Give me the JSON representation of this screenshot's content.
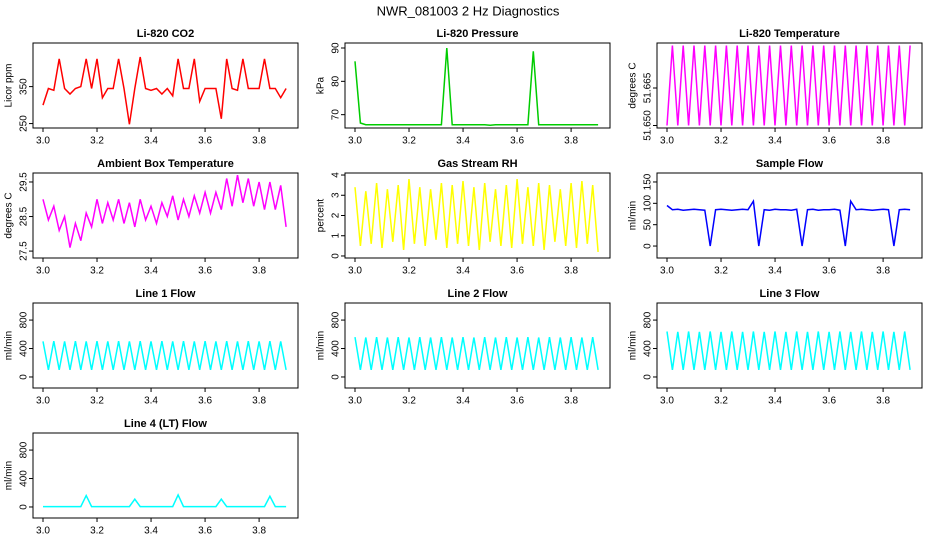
{
  "title": "NWR_081003  2 Hz Diagnostics",
  "chart_data": [
    {
      "type": "line",
      "title": "Li-820 CO2",
      "ylabel": "Licor ppm",
      "color": "#ff0000",
      "x": [
        3,
        3.02,
        3.04,
        3.06,
        3.08,
        3.1,
        3.12,
        3.14,
        3.16,
        3.18,
        3.2,
        3.22,
        3.24,
        3.26,
        3.28,
        3.3,
        3.32,
        3.34,
        3.36,
        3.38,
        3.4,
        3.42,
        3.44,
        3.46,
        3.48,
        3.5,
        3.52,
        3.54,
        3.56,
        3.58,
        3.6,
        3.62,
        3.64,
        3.66,
        3.68,
        3.7,
        3.72,
        3.74,
        3.76,
        3.78,
        3.8,
        3.82,
        3.84,
        3.86,
        3.88,
        3.9
      ],
      "values": [
        300,
        345,
        340,
        425,
        345,
        330,
        345,
        350,
        425,
        345,
        425,
        320,
        345,
        345,
        425,
        345,
        248,
        345,
        430,
        345,
        340,
        345,
        330,
        345,
        325,
        425,
        345,
        345,
        425,
        310,
        345,
        345,
        345,
        263,
        425,
        345,
        340,
        425,
        345,
        345,
        345,
        425,
        345,
        345,
        320,
        345
      ],
      "xlim": [
        2.963,
        3.944
      ],
      "xticks": [
        {
          "value": 3,
          "label": "3.0"
        },
        {
          "value": 3.2,
          "label": "3.2"
        },
        {
          "value": 3.4,
          "label": "3.4"
        },
        {
          "value": 3.6,
          "label": "3.6"
        },
        {
          "value": 3.8,
          "label": "3.8"
        }
      ],
      "ylim": [
        238,
        468
      ],
      "yticks": [
        250,
        350
      ]
    },
    {
      "type": "line",
      "title": "Li-820 Pressure",
      "ylabel": "kPa",
      "color": "#00cc00",
      "x": [
        3,
        3.02,
        3.04,
        3.06,
        3.08,
        3.1,
        3.12,
        3.14,
        3.16,
        3.18,
        3.2,
        3.22,
        3.24,
        3.26,
        3.28,
        3.3,
        3.32,
        3.34,
        3.36,
        3.38,
        3.4,
        3.42,
        3.44,
        3.46,
        3.48,
        3.5,
        3.52,
        3.54,
        3.56,
        3.58,
        3.6,
        3.62,
        3.64,
        3.66,
        3.68,
        3.7,
        3.72,
        3.74,
        3.76,
        3.78,
        3.8,
        3.82,
        3.84,
        3.86,
        3.88,
        3.9
      ],
      "values": [
        86,
        67.5,
        67,
        67,
        67,
        67,
        67,
        67,
        67,
        67,
        67,
        67,
        67,
        67,
        67,
        67,
        67,
        90,
        67,
        67,
        67,
        67,
        67,
        67,
        67,
        66.8,
        67,
        67,
        67,
        67,
        67,
        67,
        67,
        89,
        67,
        67,
        67,
        67,
        67,
        67,
        67,
        67,
        67,
        67,
        67,
        67
      ],
      "xlim": [
        2.963,
        3.944
      ],
      "xticks": [
        {
          "value": 3,
          "label": "3.0"
        },
        {
          "value": 3.2,
          "label": "3.2"
        },
        {
          "value": 3.4,
          "label": "3.4"
        },
        {
          "value": 3.6,
          "label": "3.6"
        },
        {
          "value": 3.8,
          "label": "3.8"
        }
      ],
      "ylim": [
        66,
        91.5
      ],
      "yticks": [
        70,
        80,
        90
      ]
    },
    {
      "type": "line",
      "title": "Li-820 Temperature",
      "ylabel": "degrees C",
      "color": "#ff00ff",
      "x": [
        3,
        3.02,
        3.04,
        3.06,
        3.08,
        3.1,
        3.12,
        3.14,
        3.16,
        3.18,
        3.2,
        3.22,
        3.24,
        3.26,
        3.28,
        3.3,
        3.32,
        3.34,
        3.36,
        3.38,
        3.4,
        3.42,
        3.44,
        3.46,
        3.48,
        3.5,
        3.52,
        3.54,
        3.56,
        3.58,
        3.6,
        3.62,
        3.64,
        3.66,
        3.68,
        3.7,
        3.72,
        3.74,
        3.76,
        3.78,
        3.8,
        3.82,
        3.84,
        3.86,
        3.88,
        3.9
      ],
      "values": [
        51.65,
        51.682,
        51.65,
        51.682,
        51.65,
        51.682,
        51.65,
        51.682,
        51.65,
        51.682,
        51.65,
        51.682,
        51.65,
        51.682,
        51.65,
        51.682,
        51.65,
        51.682,
        51.65,
        51.682,
        51.65,
        51.682,
        51.65,
        51.682,
        51.65,
        51.682,
        51.65,
        51.682,
        51.65,
        51.682,
        51.65,
        51.682,
        51.65,
        51.682,
        51.65,
        51.682,
        51.65,
        51.682,
        51.65,
        51.682,
        51.65,
        51.682,
        51.65,
        51.682,
        51.65,
        51.682
      ],
      "xlim": [
        2.963,
        3.944
      ],
      "xticks": [
        {
          "value": 3,
          "label": "3.0"
        },
        {
          "value": 3.2,
          "label": "3.2"
        },
        {
          "value": 3.4,
          "label": "3.4"
        },
        {
          "value": 3.6,
          "label": "3.6"
        },
        {
          "value": 3.8,
          "label": "3.8"
        }
      ],
      "ylim": [
        51.649,
        51.683
      ],
      "yticks": [
        {
          "value": 51.65,
          "label": "51.650"
        },
        {
          "value": 51.665,
          "label": "51.665"
        }
      ]
    },
    {
      "type": "line",
      "title": "Ambient Box Temperature",
      "ylabel": "degrees C",
      "color": "#ff00ff",
      "x": [
        3,
        3.02,
        3.04,
        3.06,
        3.08,
        3.1,
        3.12,
        3.14,
        3.16,
        3.18,
        3.2,
        3.22,
        3.24,
        3.26,
        3.28,
        3.3,
        3.32,
        3.34,
        3.36,
        3.38,
        3.4,
        3.42,
        3.44,
        3.46,
        3.48,
        3.5,
        3.52,
        3.54,
        3.56,
        3.58,
        3.6,
        3.62,
        3.64,
        3.66,
        3.68,
        3.7,
        3.72,
        3.74,
        3.76,
        3.78,
        3.8,
        3.82,
        3.84,
        3.86,
        3.88,
        3.9
      ],
      "values": [
        29.0,
        28.4,
        28.8,
        28.1,
        28.5,
        27.6,
        28.3,
        27.8,
        28.6,
        28.2,
        29.0,
        28.3,
        28.9,
        28.4,
        29.0,
        28.3,
        28.9,
        28.2,
        29.0,
        28.4,
        28.8,
        28.3,
        28.9,
        28.5,
        29.1,
        28.4,
        29.0,
        28.5,
        29.1,
        28.6,
        29.2,
        28.6,
        29.2,
        28.7,
        29.6,
        28.8,
        29.7,
        28.9,
        29.6,
        28.8,
        29.5,
        28.7,
        29.5,
        28.7,
        29.4,
        28.2
      ],
      "xlim": [
        2.963,
        3.944
      ],
      "xticks": [
        {
          "value": 3,
          "label": "3.0"
        },
        {
          "value": 3.2,
          "label": "3.2"
        },
        {
          "value": 3.4,
          "label": "3.4"
        },
        {
          "value": 3.6,
          "label": "3.6"
        },
        {
          "value": 3.8,
          "label": "3.8"
        }
      ],
      "ylim": [
        27.3,
        29.76
      ],
      "yticks": [
        27.5,
        28.5,
        29.5
      ]
    },
    {
      "type": "line",
      "title": "Gas Stream RH",
      "ylabel": "percent",
      "color": "#ffff00",
      "x": [
        3,
        3.02,
        3.04,
        3.06,
        3.08,
        3.1,
        3.12,
        3.14,
        3.16,
        3.18,
        3.2,
        3.22,
        3.24,
        3.26,
        3.28,
        3.3,
        3.32,
        3.34,
        3.36,
        3.38,
        3.4,
        3.42,
        3.44,
        3.46,
        3.48,
        3.5,
        3.52,
        3.54,
        3.56,
        3.58,
        3.6,
        3.62,
        3.64,
        3.66,
        3.68,
        3.7,
        3.72,
        3.74,
        3.76,
        3.78,
        3.8,
        3.82,
        3.84,
        3.86,
        3.88,
        3.9
      ],
      "values": [
        3.4,
        0.5,
        3.2,
        0.6,
        3.6,
        0.4,
        3.3,
        0.7,
        3.5,
        0.3,
        3.8,
        0.6,
        3.4,
        0.5,
        3.3,
        0.8,
        3.6,
        0.4,
        3.5,
        0.6,
        3.7,
        0.5,
        3.4,
        0.3,
        3.6,
        0.7,
        3.3,
        0.5,
        3.5,
        0.4,
        3.8,
        0.6,
        3.4,
        0.5,
        3.6,
        0.3,
        3.5,
        0.7,
        3.3,
        0.5,
        3.6,
        0.4,
        3.7,
        0.6,
        3.5,
        0.2
      ],
      "xlim": [
        2.963,
        3.944
      ],
      "xticks": [
        {
          "value": 3,
          "label": "3.0"
        },
        {
          "value": 3.2,
          "label": "3.2"
        },
        {
          "value": 3.4,
          "label": "3.4"
        },
        {
          "value": 3.6,
          "label": "3.6"
        },
        {
          "value": 3.8,
          "label": "3.8"
        }
      ],
      "ylim": [
        -0.1,
        4.1
      ],
      "yticks": [
        0,
        1,
        2,
        3,
        4
      ]
    },
    {
      "type": "line",
      "title": "Sample Flow",
      "ylabel": "ml/min",
      "color": "#0000ff",
      "x": [
        3,
        3.02,
        3.04,
        3.06,
        3.08,
        3.1,
        3.12,
        3.14,
        3.16,
        3.18,
        3.2,
        3.22,
        3.24,
        3.26,
        3.28,
        3.3,
        3.32,
        3.34,
        3.36,
        3.38,
        3.4,
        3.42,
        3.44,
        3.46,
        3.48,
        3.5,
        3.52,
        3.54,
        3.56,
        3.58,
        3.6,
        3.62,
        3.64,
        3.66,
        3.68,
        3.7,
        3.72,
        3.74,
        3.76,
        3.78,
        3.8,
        3.82,
        3.84,
        3.86,
        3.88,
        3.9
      ],
      "values": [
        95,
        85,
        86,
        84,
        85,
        86,
        85,
        84,
        0,
        85,
        86,
        85,
        84,
        85,
        86,
        85,
        105,
        0,
        85,
        84,
        86,
        85,
        85,
        84,
        86,
        0,
        85,
        86,
        84,
        85,
        85,
        86,
        84,
        0,
        105,
        85,
        86,
        85,
        84,
        85,
        86,
        85,
        0,
        85,
        86,
        85
      ],
      "xlim": [
        2.963,
        3.944
      ],
      "xticks": [
        {
          "value": 3,
          "label": "3.0"
        },
        {
          "value": 3.2,
          "label": "3.2"
        },
        {
          "value": 3.4,
          "label": "3.4"
        },
        {
          "value": 3.6,
          "label": "3.6"
        },
        {
          "value": 3.8,
          "label": "3.8"
        }
      ],
      "ylim": [
        -28,
        171
      ],
      "yticks": [
        0,
        50,
        100,
        150
      ]
    },
    {
      "type": "line",
      "title": "Line 1 Flow",
      "ylabel": "ml/min",
      "color": "#00ffff",
      "x": [
        3,
        3.02,
        3.04,
        3.06,
        3.08,
        3.1,
        3.12,
        3.14,
        3.16,
        3.18,
        3.2,
        3.22,
        3.24,
        3.26,
        3.28,
        3.3,
        3.32,
        3.34,
        3.36,
        3.38,
        3.4,
        3.42,
        3.44,
        3.46,
        3.48,
        3.5,
        3.52,
        3.54,
        3.56,
        3.58,
        3.6,
        3.62,
        3.64,
        3.66,
        3.68,
        3.7,
        3.72,
        3.74,
        3.76,
        3.78,
        3.8,
        3.82,
        3.84,
        3.86,
        3.88,
        3.9
      ],
      "values": [
        500,
        100,
        505,
        100,
        500,
        100,
        505,
        100,
        500,
        100,
        505,
        100,
        500,
        100,
        505,
        100,
        500,
        100,
        505,
        100,
        500,
        100,
        505,
        100,
        500,
        100,
        505,
        100,
        500,
        100,
        505,
        100,
        500,
        100,
        505,
        100,
        500,
        100,
        505,
        100,
        500,
        100,
        505,
        100,
        500,
        100
      ],
      "xlim": [
        2.963,
        3.944
      ],
      "xticks": [
        {
          "value": 3,
          "label": "3.0"
        },
        {
          "value": 3.2,
          "label": "3.2"
        },
        {
          "value": 3.4,
          "label": "3.4"
        },
        {
          "value": 3.6,
          "label": "3.6"
        },
        {
          "value": 3.8,
          "label": "3.8"
        }
      ],
      "ylim": [
        -155,
        1040
      ],
      "yticks": [
        0,
        400,
        800
      ]
    },
    {
      "type": "line",
      "title": "Line 2 Flow",
      "ylabel": "ml/min",
      "color": "#00ffff",
      "x": [
        3,
        3.02,
        3.04,
        3.06,
        3.08,
        3.1,
        3.12,
        3.14,
        3.16,
        3.18,
        3.2,
        3.22,
        3.24,
        3.26,
        3.28,
        3.3,
        3.32,
        3.34,
        3.36,
        3.38,
        3.4,
        3.42,
        3.44,
        3.46,
        3.48,
        3.5,
        3.52,
        3.54,
        3.56,
        3.58,
        3.6,
        3.62,
        3.64,
        3.66,
        3.68,
        3.7,
        3.72,
        3.74,
        3.76,
        3.78,
        3.8,
        3.82,
        3.84,
        3.86,
        3.88,
        3.9
      ],
      "values": [
        560,
        100,
        555,
        100,
        560,
        100,
        555,
        100,
        560,
        100,
        555,
        100,
        560,
        100,
        555,
        100,
        560,
        100,
        555,
        100,
        560,
        100,
        555,
        100,
        560,
        100,
        555,
        100,
        560,
        100,
        555,
        100,
        560,
        100,
        555,
        100,
        560,
        100,
        555,
        100,
        560,
        100,
        555,
        100,
        560,
        100
      ],
      "xlim": [
        2.963,
        3.944
      ],
      "xticks": [
        {
          "value": 3,
          "label": "3.0"
        },
        {
          "value": 3.2,
          "label": "3.2"
        },
        {
          "value": 3.4,
          "label": "3.4"
        },
        {
          "value": 3.6,
          "label": "3.6"
        },
        {
          "value": 3.8,
          "label": "3.8"
        }
      ],
      "ylim": [
        -155,
        1040
      ],
      "yticks": [
        0,
        400,
        800
      ]
    },
    {
      "type": "line",
      "title": "Line 3 Flow",
      "ylabel": "ml/min",
      "color": "#00ffff",
      "x": [
        3,
        3.02,
        3.04,
        3.06,
        3.08,
        3.1,
        3.12,
        3.14,
        3.16,
        3.18,
        3.2,
        3.22,
        3.24,
        3.26,
        3.28,
        3.3,
        3.32,
        3.34,
        3.36,
        3.38,
        3.4,
        3.42,
        3.44,
        3.46,
        3.48,
        3.5,
        3.52,
        3.54,
        3.56,
        3.58,
        3.6,
        3.62,
        3.64,
        3.66,
        3.68,
        3.7,
        3.72,
        3.74,
        3.76,
        3.78,
        3.8,
        3.82,
        3.84,
        3.86,
        3.88,
        3.9
      ],
      "values": [
        640,
        100,
        635,
        100,
        640,
        100,
        635,
        100,
        640,
        100,
        635,
        100,
        640,
        100,
        635,
        100,
        640,
        100,
        635,
        100,
        640,
        100,
        635,
        100,
        640,
        100,
        635,
        100,
        640,
        100,
        635,
        100,
        640,
        100,
        635,
        100,
        640,
        100,
        635,
        100,
        640,
        100,
        635,
        100,
        640,
        100
      ],
      "xlim": [
        2.963,
        3.944
      ],
      "xticks": [
        {
          "value": 3,
          "label": "3.0"
        },
        {
          "value": 3.2,
          "label": "3.2"
        },
        {
          "value": 3.4,
          "label": "3.4"
        },
        {
          "value": 3.6,
          "label": "3.6"
        },
        {
          "value": 3.8,
          "label": "3.8"
        }
      ],
      "ylim": [
        -155,
        1040
      ],
      "yticks": [
        0,
        400,
        800
      ]
    },
    {
      "type": "line",
      "title": "Line 4 (LT) Flow",
      "ylabel": "ml/min",
      "color": "#00ffff",
      "x": [
        3,
        3.02,
        3.04,
        3.06,
        3.08,
        3.1,
        3.12,
        3.14,
        3.16,
        3.18,
        3.2,
        3.22,
        3.24,
        3.26,
        3.28,
        3.3,
        3.32,
        3.34,
        3.36,
        3.38,
        3.4,
        3.42,
        3.44,
        3.46,
        3.48,
        3.5,
        3.52,
        3.54,
        3.56,
        3.58,
        3.6,
        3.62,
        3.64,
        3.66,
        3.68,
        3.7,
        3.72,
        3.74,
        3.76,
        3.78,
        3.8,
        3.82,
        3.84,
        3.86,
        3.88,
        3.9
      ],
      "values": [
        5,
        5,
        5,
        5,
        5,
        5,
        5,
        5,
        160,
        5,
        5,
        5,
        5,
        5,
        5,
        5,
        5,
        110,
        5,
        5,
        5,
        5,
        5,
        5,
        5,
        170,
        5,
        5,
        5,
        5,
        5,
        5,
        5,
        110,
        5,
        5,
        5,
        5,
        5,
        5,
        5,
        5,
        150,
        5,
        5,
        5
      ],
      "xlim": [
        2.963,
        3.944
      ],
      "xticks": [
        {
          "value": 3,
          "label": "3.0"
        },
        {
          "value": 3.2,
          "label": "3.2"
        },
        {
          "value": 3.4,
          "label": "3.4"
        },
        {
          "value": 3.6,
          "label": "3.6"
        },
        {
          "value": 3.8,
          "label": "3.8"
        }
      ],
      "ylim": [
        -155,
        1040
      ],
      "yticks": [
        0,
        400,
        800
      ]
    }
  ]
}
